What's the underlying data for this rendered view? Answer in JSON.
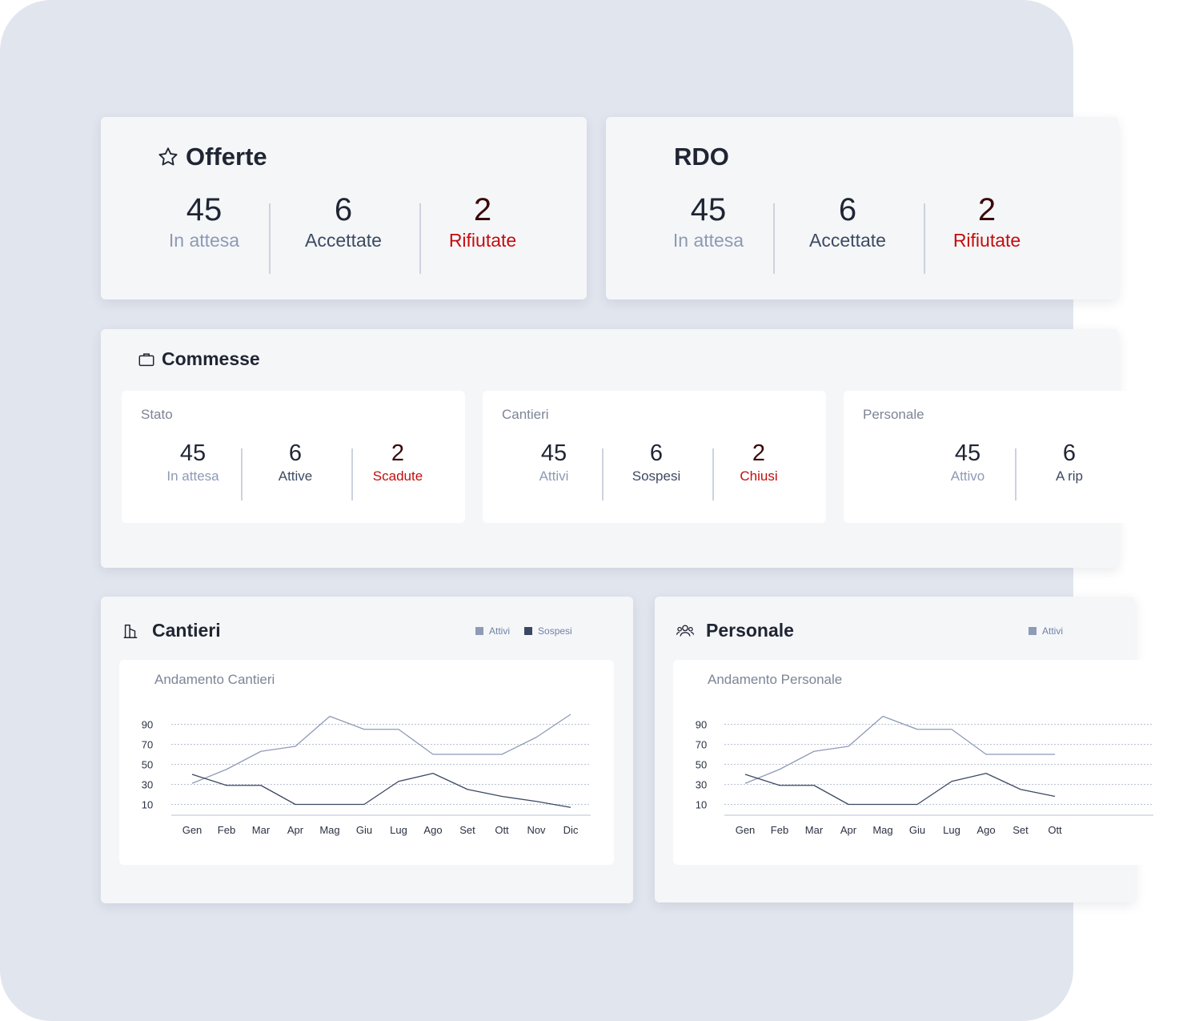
{
  "offerte": {
    "title": "Offerte",
    "icon": "star-icon",
    "stats": [
      {
        "value": "45",
        "label": "In attesa"
      },
      {
        "value": "6",
        "label": "Accettate"
      },
      {
        "value": "2",
        "label": "Rifiutate"
      }
    ]
  },
  "rdo": {
    "title": "RDO",
    "stats": [
      {
        "value": "45",
        "label": "In attesa"
      },
      {
        "value": "6",
        "label": "Accettate"
      },
      {
        "value": "2",
        "label": "Rifiutate"
      }
    ]
  },
  "commesse": {
    "title": "Commesse",
    "icon": "briefcase-icon",
    "stato": {
      "title": "Stato",
      "stats": [
        {
          "value": "45",
          "label": "In attesa"
        },
        {
          "value": "6",
          "label": "Attive"
        },
        {
          "value": "2",
          "label": "Scadute"
        }
      ]
    },
    "cantieri": {
      "title": "Cantieri",
      "stats": [
        {
          "value": "45",
          "label": "Attivi"
        },
        {
          "value": "6",
          "label": "Sospesi"
        },
        {
          "value": "2",
          "label": "Chiusi"
        }
      ]
    },
    "personale": {
      "title": "Personale",
      "stats": [
        {
          "value": "45",
          "label": "Attivo"
        },
        {
          "value": "6",
          "label": "A rip"
        }
      ]
    }
  },
  "colors": {
    "rejected": "#c40d0d",
    "pending": "#8d9ab5",
    "series_light": "#8e9bb6",
    "series_dark": "#3b4863"
  },
  "chart_data": [
    {
      "type": "line",
      "panel_title": "Cantieri",
      "title": "Andamento Cantieri",
      "categories": [
        "Gen",
        "Feb",
        "Mar",
        "Apr",
        "Mag",
        "Giu",
        "Lug",
        "Ago",
        "Set",
        "Ott",
        "Nov",
        "Dic"
      ],
      "yticks": [
        10,
        30,
        50,
        70,
        90
      ],
      "ylim": [
        0,
        100
      ],
      "grid": true,
      "legend_position": "top-right",
      "series": [
        {
          "name": "Attivi",
          "color": "#8e9bb6",
          "values": [
            31,
            45,
            63,
            68,
            98,
            85,
            85,
            60,
            60,
            60,
            77,
            100
          ]
        },
        {
          "name": "Sospesi",
          "color": "#3b4863",
          "values": [
            40,
            29,
            29,
            10,
            10,
            10,
            33,
            41,
            25,
            18,
            13,
            7
          ]
        }
      ]
    },
    {
      "type": "line",
      "panel_title": "Personale",
      "title": "Andamento Personale",
      "categories": [
        "Gen",
        "Feb",
        "Mar",
        "Apr",
        "Mag",
        "Giu",
        "Lug",
        "Ago",
        "Set",
        "Ott"
      ],
      "yticks": [
        10,
        30,
        50,
        70,
        90
      ],
      "ylim": [
        0,
        100
      ],
      "grid": true,
      "legend_position": "top-right",
      "series": [
        {
          "name": "Attivi",
          "color": "#8e9bb6",
          "values": [
            31,
            45,
            63,
            68,
            98,
            85,
            85,
            60,
            60,
            60
          ]
        },
        {
          "name": "",
          "color": "#3b4863",
          "values": [
            40,
            29,
            29,
            10,
            10,
            10,
            33,
            41,
            25,
            18
          ]
        }
      ]
    }
  ]
}
